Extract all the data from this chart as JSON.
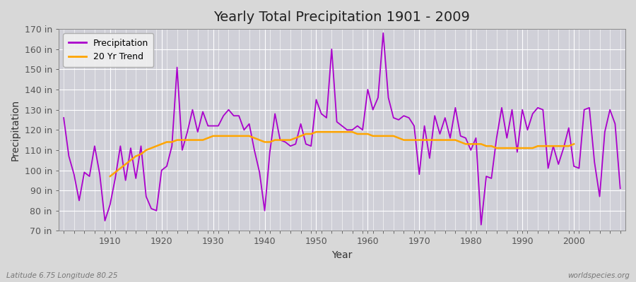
{
  "title": "Yearly Total Precipitation 1901 - 2009",
  "xlabel": "Year",
  "ylabel": "Precipitation",
  "subtitle": "Latitude 6.75 Longitude 80.25",
  "watermark": "worldspecies.org",
  "ylim": [
    70,
    170
  ],
  "ytick_step": 10,
  "years": [
    1901,
    1902,
    1903,
    1904,
    1905,
    1906,
    1907,
    1908,
    1909,
    1910,
    1911,
    1912,
    1913,
    1914,
    1915,
    1916,
    1917,
    1918,
    1919,
    1920,
    1921,
    1922,
    1923,
    1924,
    1925,
    1926,
    1927,
    1928,
    1929,
    1930,
    1931,
    1932,
    1933,
    1934,
    1935,
    1936,
    1937,
    1938,
    1939,
    1940,
    1941,
    1942,
    1943,
    1944,
    1945,
    1946,
    1947,
    1948,
    1949,
    1950,
    1951,
    1952,
    1953,
    1954,
    1955,
    1956,
    1957,
    1958,
    1959,
    1960,
    1961,
    1962,
    1963,
    1964,
    1965,
    1966,
    1967,
    1968,
    1969,
    1970,
    1971,
    1972,
    1973,
    1974,
    1975,
    1976,
    1977,
    1978,
    1979,
    1980,
    1981,
    1982,
    1983,
    1984,
    1985,
    1986,
    1987,
    1988,
    1989,
    1990,
    1991,
    1992,
    1993,
    1994,
    1995,
    1996,
    1997,
    1998,
    1999,
    2000,
    2001,
    2002,
    2003,
    2004,
    2005,
    2006,
    2007,
    2008,
    2009
  ],
  "precipitation": [
    126,
    107,
    98,
    85,
    99,
    97,
    112,
    98,
    75,
    83,
    96,
    112,
    95,
    111,
    96,
    112,
    87,
    81,
    80,
    100,
    102,
    112,
    151,
    110,
    119,
    130,
    119,
    129,
    122,
    122,
    122,
    127,
    130,
    127,
    127,
    120,
    123,
    110,
    99,
    80,
    109,
    128,
    115,
    114,
    112,
    113,
    123,
    113,
    112,
    135,
    128,
    126,
    160,
    124,
    122,
    120,
    120,
    122,
    120,
    140,
    130,
    136,
    168,
    136,
    126,
    125,
    127,
    126,
    122,
    98,
    122,
    106,
    127,
    118,
    126,
    116,
    131,
    117,
    116,
    110,
    116,
    73,
    97,
    96,
    116,
    131,
    116,
    130,
    109,
    130,
    120,
    128,
    131,
    130,
    101,
    112,
    103,
    111,
    121,
    102,
    101,
    130,
    131,
    104,
    87,
    119,
    130,
    123,
    91
  ],
  "trend_years": [
    1910,
    1911,
    1912,
    1913,
    1914,
    1915,
    1916,
    1917,
    1918,
    1919,
    1920,
    1921,
    1922,
    1923,
    1924,
    1925,
    1926,
    1927,
    1928,
    1929,
    1930,
    1931,
    1932,
    1933,
    1934,
    1935,
    1936,
    1937,
    1938,
    1939,
    1940,
    1941,
    1942,
    1943,
    1944,
    1945,
    1946,
    1947,
    1948,
    1949,
    1950,
    1951,
    1952,
    1953,
    1954,
    1955,
    1956,
    1957,
    1958,
    1959,
    1960,
    1961,
    1962,
    1963,
    1964,
    1965,
    1966,
    1967,
    1968,
    1969,
    1970,
    1971,
    1972,
    1973,
    1974,
    1975,
    1976,
    1977,
    1978,
    1979,
    1980,
    1981,
    1982,
    1983,
    1984,
    1985,
    1986,
    1987,
    1988,
    1989,
    1990,
    1991,
    1992,
    1993,
    1994,
    1995,
    1996,
    1997,
    1998,
    1999,
    2000
  ],
  "trend_values": [
    97,
    99,
    101,
    103,
    105,
    107,
    108,
    110,
    111,
    112,
    113,
    114,
    114,
    115,
    115,
    115,
    115,
    115,
    115,
    116,
    117,
    117,
    117,
    117,
    117,
    117,
    117,
    117,
    116,
    115,
    114,
    114,
    115,
    115,
    115,
    115,
    116,
    117,
    118,
    118,
    119,
    119,
    119,
    119,
    119,
    119,
    119,
    119,
    118,
    118,
    118,
    117,
    117,
    117,
    117,
    117,
    116,
    115,
    115,
    115,
    115,
    115,
    115,
    115,
    115,
    115,
    115,
    115,
    114,
    113,
    113,
    113,
    113,
    112,
    112,
    111,
    111,
    111,
    111,
    111,
    111,
    111,
    111,
    112,
    112,
    112,
    112,
    112,
    112,
    112,
    113
  ],
  "precip_color": "#AA00CC",
  "trend_color": "#FFA500",
  "fig_background": "#D8D8D8",
  "plot_background": "#D0D0D8",
  "grid_color": "#FFFFFF",
  "grid_linewidth": 0.8,
  "title_fontsize": 14,
  "axis_label_fontsize": 10,
  "tick_fontsize": 9,
  "legend_fontsize": 9,
  "precip_linewidth": 1.3,
  "trend_linewidth": 1.8,
  "xlim_left": 1900,
  "xlim_right": 2010
}
